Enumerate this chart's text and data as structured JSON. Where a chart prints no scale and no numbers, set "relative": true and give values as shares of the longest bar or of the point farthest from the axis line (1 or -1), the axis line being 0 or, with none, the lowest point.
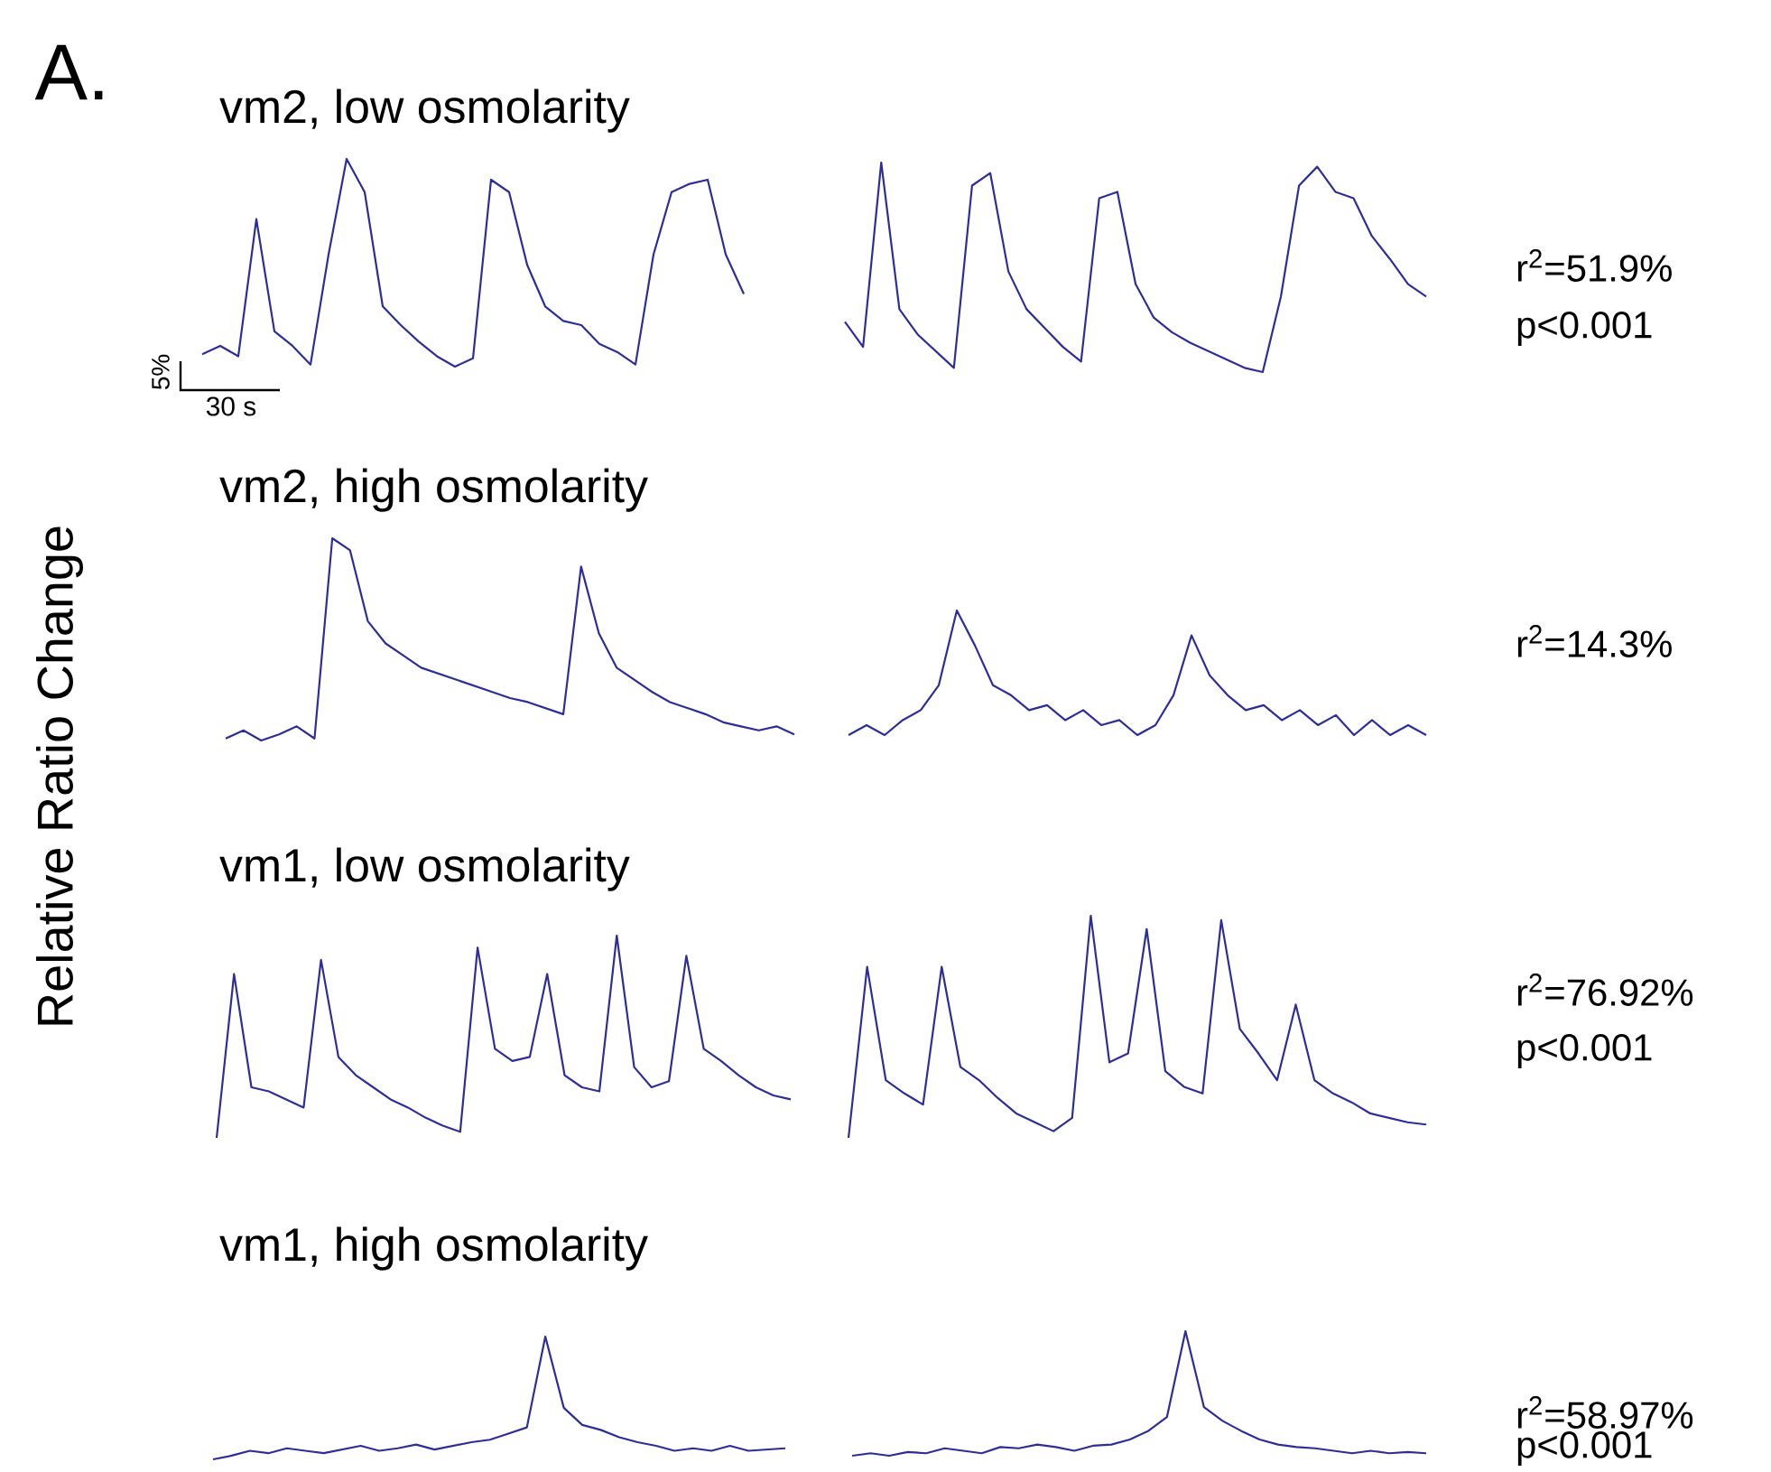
{
  "chart_data": [
    {
      "type": "line",
      "relative": true,
      "title": "vm2, low osmolarity",
      "categories": [
        null,
        null,
        null,
        null,
        null,
        null,
        null,
        null,
        null,
        null,
        null,
        null,
        null,
        null,
        null,
        null,
        null,
        null,
        null,
        null,
        null,
        null,
        null,
        null,
        null,
        null,
        null,
        null,
        null,
        null,
        null
      ],
      "series": [
        {
          "color": "#2e2e9a",
          "values": [
            0.06,
            0.1,
            0.05,
            0.71,
            0.17,
            0.1,
            0.01,
            0.54,
            1,
            0.84,
            0.29,
            0.2,
            0.12,
            0.05,
            0,
            0.04,
            0.9,
            0.84,
            0.49,
            0.29,
            0.22,
            0.2,
            0.11,
            0.07,
            0.01,
            0.54,
            0.84,
            0.88,
            0.9,
            0.54,
            0.35
          ]
        }
      ],
      "annotations": [
        "A.",
        "5%",
        "30 s"
      ]
    },
    {
      "type": "line",
      "relative": true,
      "categories": [
        null,
        null,
        null,
        null,
        null,
        null,
        null,
        null,
        null,
        null,
        null,
        null,
        null,
        null,
        null,
        null,
        null,
        null,
        null,
        null,
        null,
        null,
        null,
        null,
        null,
        null,
        null,
        null,
        null,
        null,
        null,
        null,
        null
      ],
      "series": [
        {
          "color": "#2e2e9a",
          "values": [
            0.24,
            0.12,
            1,
            0.3,
            0.18,
            0.1,
            0.02,
            0.89,
            0.95,
            0.48,
            0.3,
            0.21,
            0.12,
            0.05,
            0.83,
            0.86,
            0.42,
            0.26,
            0.19,
            0.14,
            0.1,
            0.06,
            0.02,
            0,
            0.36,
            0.89,
            0.98,
            0.86,
            0.83,
            0.65,
            0.54,
            0.42,
            0.36
          ]
        }
      ],
      "annotations": [
        "r$^{2}$=51.9%",
        "p<0.001"
      ]
    },
    {
      "type": "line",
      "relative": true,
      "title": "vm2, high osmolarity",
      "ylabel": "Relative Ratio Change",
      "categories": [
        null,
        null,
        null,
        null,
        null,
        null,
        null,
        null,
        null,
        null,
        null,
        null,
        null,
        null,
        null,
        null,
        null,
        null,
        null,
        null,
        null,
        null,
        null,
        null,
        null,
        null,
        null,
        null,
        null,
        null,
        null,
        null,
        null
      ],
      "series": [
        {
          "color": "#2e2e9a",
          "values": [
            0.01,
            0.05,
            0,
            0.03,
            0.07,
            0.01,
            1,
            0.94,
            0.59,
            0.48,
            0.42,
            0.36,
            0.33,
            0.3,
            0.27,
            0.24,
            0.21,
            0.19,
            0.16,
            0.13,
            0.86,
            0.53,
            0.36,
            0.3,
            0.24,
            0.19,
            0.16,
            0.13,
            0.09,
            0.07,
            0.05,
            0.07,
            0.03
          ]
        }
      ]
    },
    {
      "type": "line",
      "relative": true,
      "categories": [
        null,
        null,
        null,
        null,
        null,
        null,
        null,
        null,
        null,
        null,
        null,
        null,
        null,
        null,
        null,
        null,
        null,
        null,
        null,
        null,
        null,
        null,
        null,
        null,
        null,
        null,
        null,
        null,
        null,
        null,
        null,
        null,
        null
      ],
      "series": [
        {
          "color": "#2e2e9a",
          "values": [
            0,
            0.08,
            0,
            0.12,
            0.2,
            0.4,
            1,
            0.72,
            0.4,
            0.32,
            0.2,
            0.24,
            0.12,
            0.2,
            0.08,
            0.12,
            0,
            0.08,
            0.32,
            0.8,
            0.48,
            0.32,
            0.2,
            0.24,
            0.12,
            0.2,
            0.08,
            0.16,
            0,
            0.12,
            0,
            0.08,
            0
          ]
        }
      ],
      "annotations": [
        "r$^{2}$=14.3%"
      ]
    },
    {
      "type": "line",
      "relative": true,
      "title": "vm1, low osmolarity",
      "categories": [
        null,
        null,
        null,
        null,
        null,
        null,
        null,
        null,
        null,
        null,
        null,
        null,
        null,
        null,
        null,
        null,
        null,
        null,
        null,
        null,
        null,
        null,
        null,
        null,
        null,
        null,
        null,
        null,
        null,
        null,
        null,
        null,
        null,
        null
      ],
      "series": [
        {
          "color": "#2e2e9a",
          "values": [
            0,
            0.81,
            0.25,
            0.23,
            0.19,
            0.15,
            0.88,
            0.4,
            0.31,
            0.25,
            0.19,
            0.15,
            0.1,
            0.06,
            0.03,
            0.94,
            0.44,
            0.38,
            0.4,
            0.81,
            0.31,
            0.25,
            0.23,
            1,
            0.35,
            0.25,
            0.28,
            0.9,
            0.44,
            0.38,
            0.31,
            0.25,
            0.21,
            0.19
          ]
        }
      ]
    },
    {
      "type": "line",
      "relative": true,
      "categories": [
        null,
        null,
        null,
        null,
        null,
        null,
        null,
        null,
        null,
        null,
        null,
        null,
        null,
        null,
        null,
        null,
        null,
        null,
        null,
        null,
        null,
        null,
        null,
        null,
        null,
        null,
        null,
        null,
        null,
        null,
        null,
        null
      ],
      "series": [
        {
          "color": "#2e2e9a",
          "values": [
            0,
            0.77,
            0.26,
            0.2,
            0.15,
            0.77,
            0.32,
            0.26,
            0.18,
            0.11,
            0.07,
            0.03,
            0.09,
            1,
            0.34,
            0.38,
            0.94,
            0.3,
            0.23,
            0.2,
            0.98,
            0.49,
            0.38,
            0.26,
            0.6,
            0.26,
            0.2,
            0.16,
            0.11,
            0.09,
            0.07,
            0.06
          ]
        }
      ],
      "annotations": [
        "r$^{2}$=76.92%",
        "p<0.001"
      ]
    },
    {
      "type": "line",
      "relative": true,
      "title": "vm1, high osmolarity",
      "categories": [
        null,
        null,
        null,
        null,
        null,
        null,
        null,
        null,
        null,
        null,
        null,
        null,
        null,
        null,
        null,
        null,
        null,
        null,
        null,
        null,
        null,
        null,
        null,
        null,
        null,
        null,
        null,
        null,
        null,
        null,
        null,
        null
      ],
      "series": [
        {
          "color": "#2e2e9a",
          "values": [
            0,
            0.03,
            0.07,
            0.05,
            0.09,
            0.07,
            0.05,
            0.08,
            0.11,
            0.07,
            0.09,
            0.12,
            0.08,
            0.11,
            0.14,
            0.16,
            0.21,
            0.26,
            1,
            0.42,
            0.28,
            0.24,
            0.18,
            0.14,
            0.11,
            0.07,
            0.09,
            0.07,
            0.11,
            0.07,
            0.08,
            0.09
          ]
        }
      ]
    },
    {
      "type": "line",
      "relative": true,
      "categories": [
        null,
        null,
        null,
        null,
        null,
        null,
        null,
        null,
        null,
        null,
        null,
        null,
        null,
        null,
        null,
        null,
        null,
        null,
        null,
        null,
        null,
        null,
        null,
        null,
        null,
        null,
        null,
        null,
        null,
        null,
        null,
        null
      ],
      "series": [
        {
          "color": "#2e2e9a",
          "values": [
            0,
            0.02,
            0,
            0.03,
            0.02,
            0.06,
            0.04,
            0.02,
            0.07,
            0.06,
            0.09,
            0.07,
            0.04,
            0.08,
            0.09,
            0.13,
            0.2,
            0.31,
            1,
            0.39,
            0.28,
            0.2,
            0.13,
            0.09,
            0.07,
            0.06,
            0.04,
            0.02,
            0.04,
            0.02,
            0.03,
            0.02
          ]
        }
      ],
      "annotations": [
        "r$^{2}$=58.97%",
        "p<0.001"
      ]
    }
  ]
}
